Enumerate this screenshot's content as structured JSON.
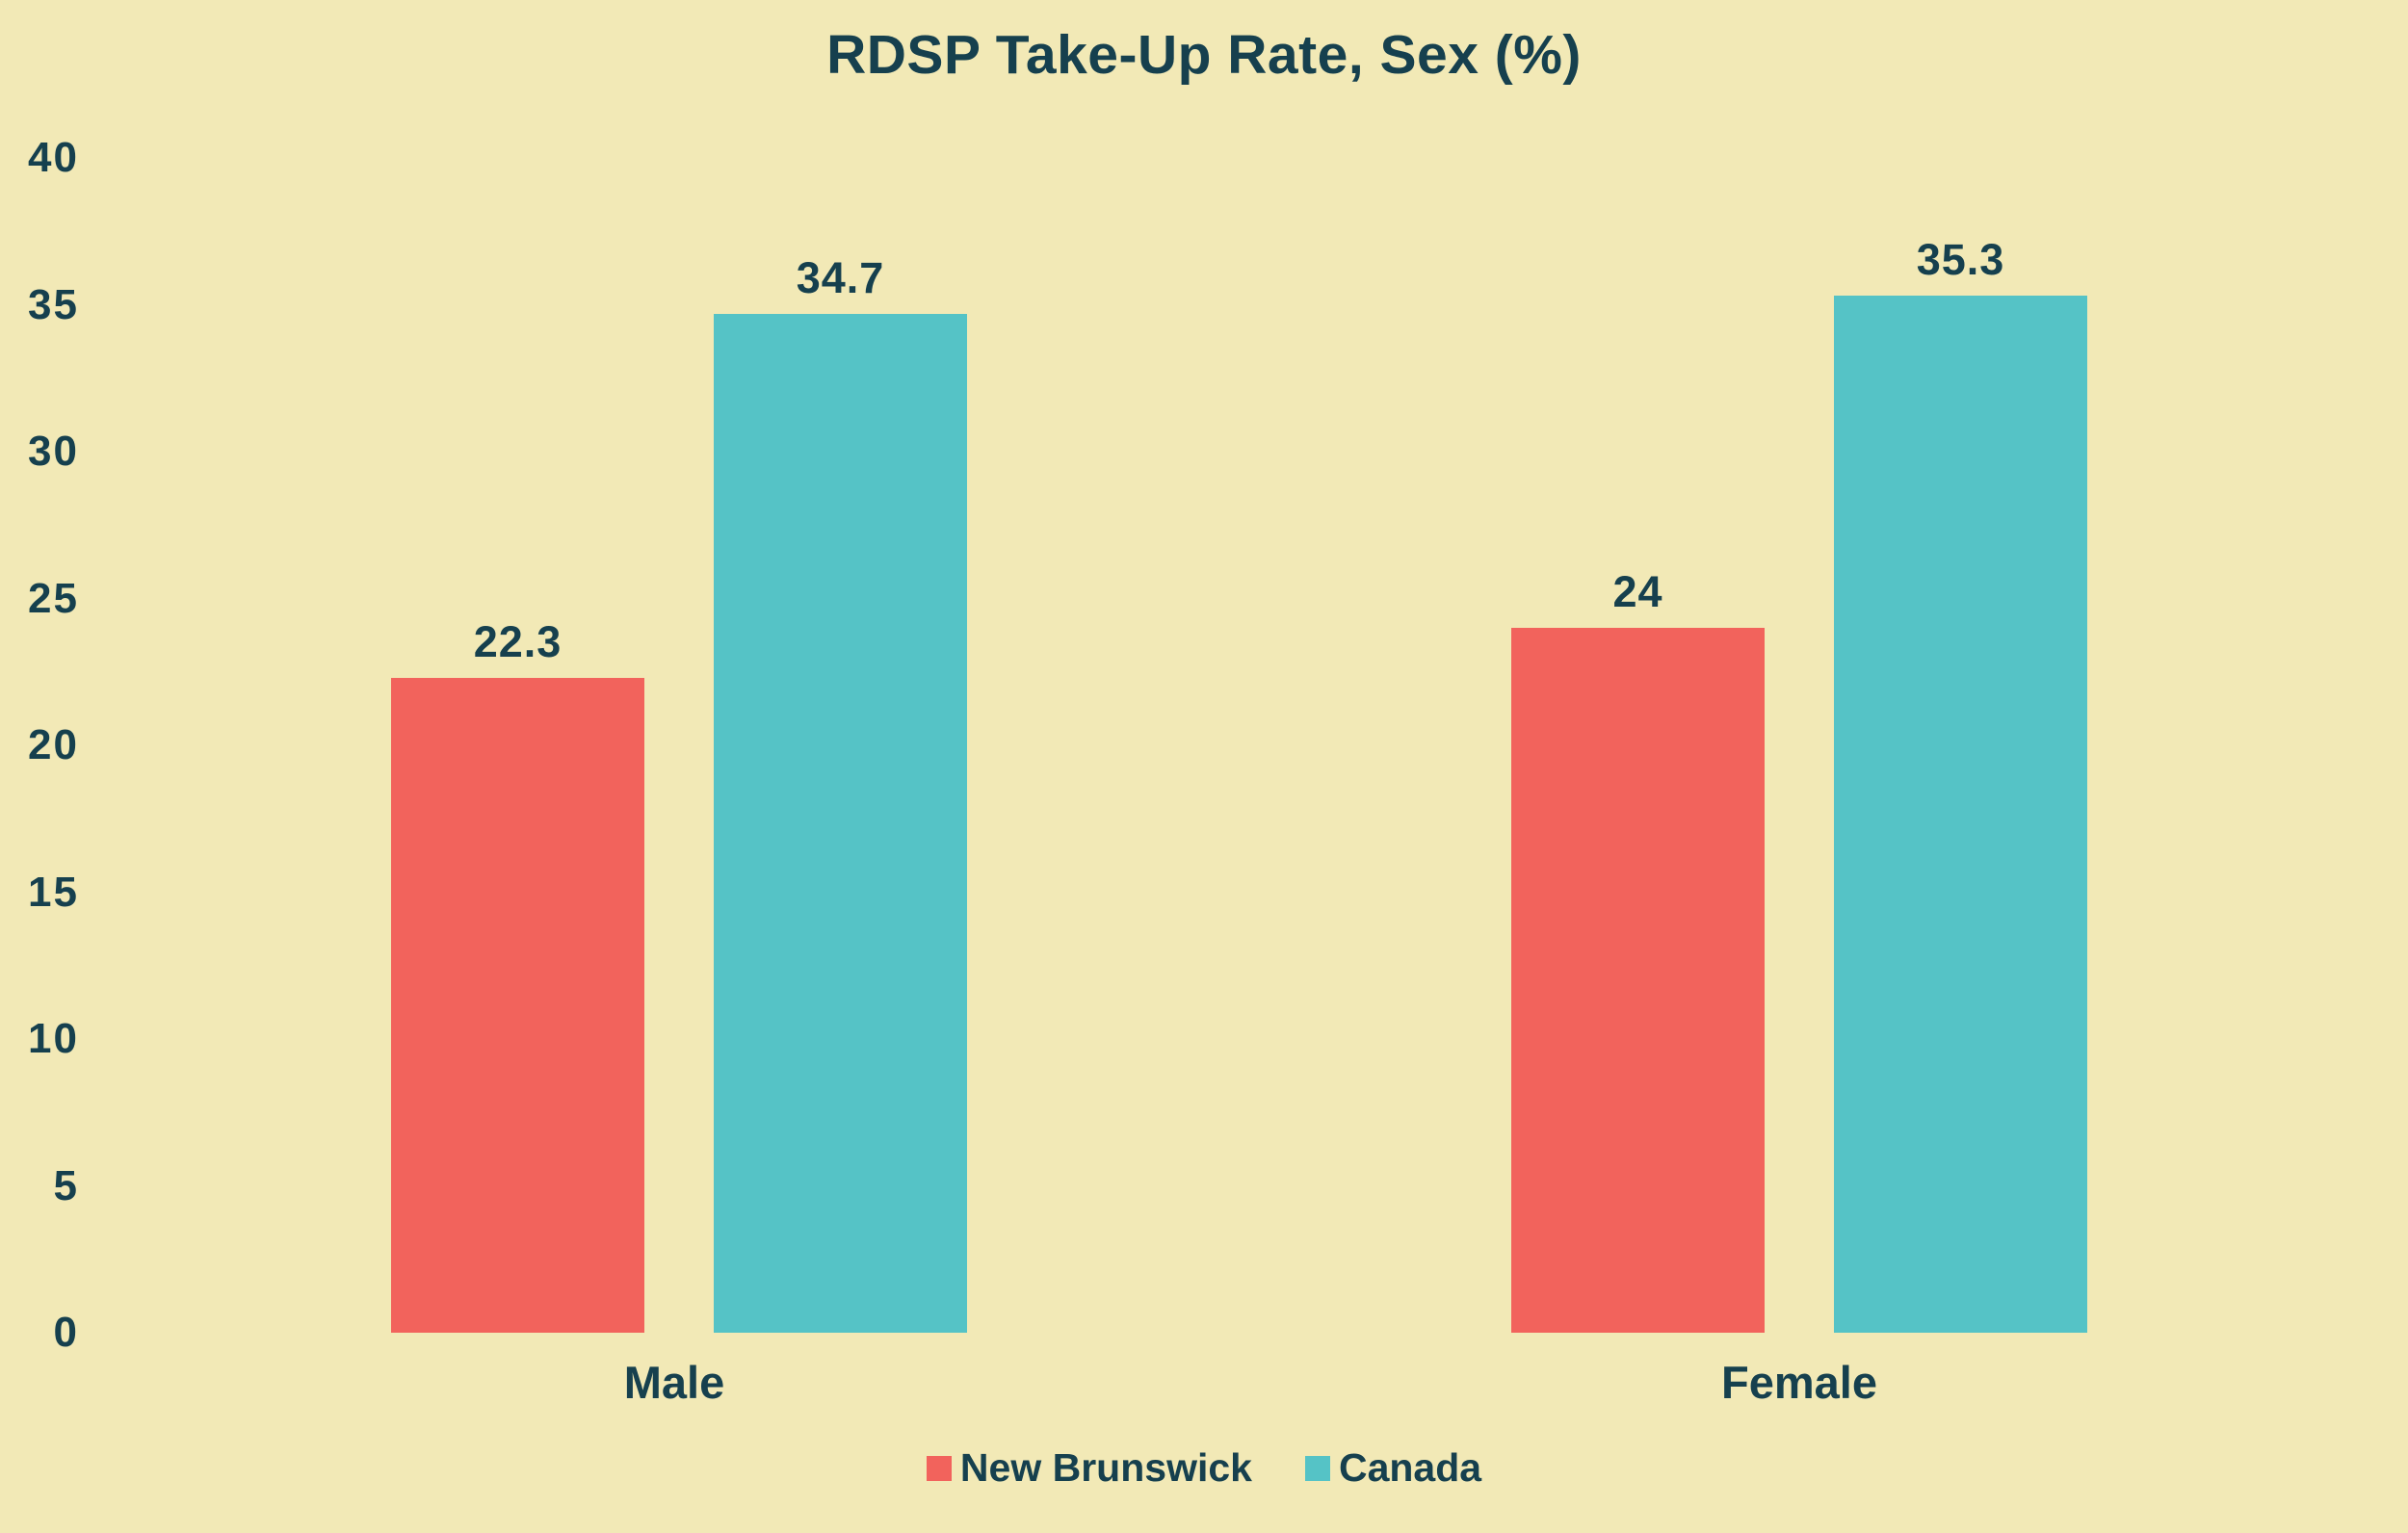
{
  "chart_data": {
    "type": "bar",
    "title": "RDSP Take-Up Rate, Sex (%)",
    "categories": [
      "Male",
      "Female"
    ],
    "series": [
      {
        "name": "New Brunswick",
        "color": "#F2635C",
        "values": [
          22.3,
          24
        ]
      },
      {
        "name": "Canada",
        "color": "#55C3C6",
        "values": [
          34.7,
          35.3
        ]
      }
    ],
    "ylim": [
      0,
      40
    ],
    "yticks": [
      0,
      5,
      10,
      15,
      20,
      25,
      30,
      35,
      40
    ],
    "xlabel": "",
    "ylabel": "",
    "grid": false,
    "legend_position": "bottom",
    "value_labels_shown": true
  },
  "colors": {
    "background": "#F2E9B6",
    "text": "#16404E",
    "new_brunswick": "#F2635C",
    "canada": "#55C3C6"
  }
}
